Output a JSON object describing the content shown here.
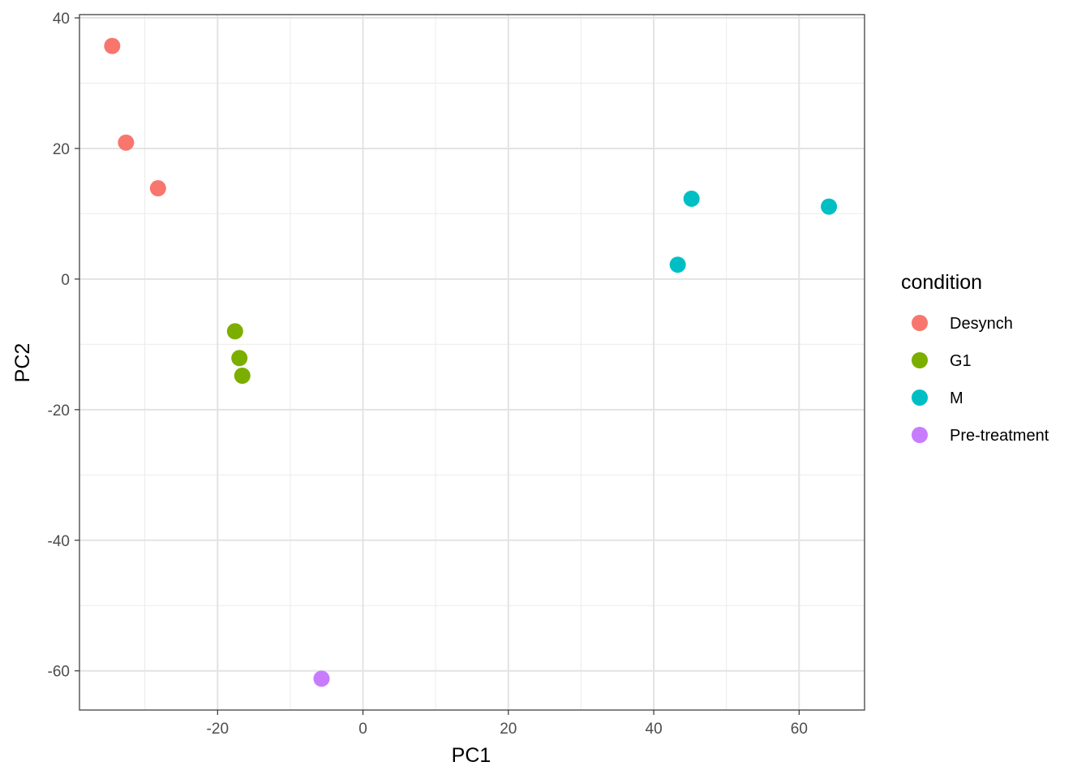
{
  "chart_data": {
    "type": "scatter",
    "title": "",
    "xlabel": "PC1",
    "ylabel": "PC2",
    "xlim": [
      -39,
      69
    ],
    "ylim": [
      -66,
      40.5
    ],
    "x_ticks": [
      -20,
      0,
      20,
      40,
      60
    ],
    "y_ticks": [
      40,
      20,
      0,
      -20,
      -40,
      -60
    ],
    "x_tick_labels": [
      "-20",
      "0",
      "20",
      "40",
      "60"
    ],
    "y_tick_labels": [
      "40",
      "20",
      "0",
      "-20",
      "-40",
      "-60"
    ],
    "grid": true,
    "legend_title": "condition",
    "legend_position": "right",
    "series": [
      {
        "name": "Desynch",
        "color": "#F8766D",
        "points": [
          {
            "x": -34.5,
            "y": 35.7
          },
          {
            "x": -32.6,
            "y": 20.9
          },
          {
            "x": -28.2,
            "y": 13.9
          }
        ]
      },
      {
        "name": "G1",
        "color": "#7CAE00",
        "points": [
          {
            "x": -17.6,
            "y": -8.0
          },
          {
            "x": -17.0,
            "y": -12.1
          },
          {
            "x": -16.6,
            "y": -14.8
          }
        ]
      },
      {
        "name": "M",
        "color": "#00BFC4",
        "points": [
          {
            "x": 45.2,
            "y": 12.3
          },
          {
            "x": 64.1,
            "y": 11.1
          },
          {
            "x": 43.3,
            "y": 2.2
          }
        ]
      },
      {
        "name": "Pre-treatment",
        "color": "#C77CFF",
        "points": [
          {
            "x": -5.7,
            "y": -61.2
          }
        ]
      }
    ]
  }
}
